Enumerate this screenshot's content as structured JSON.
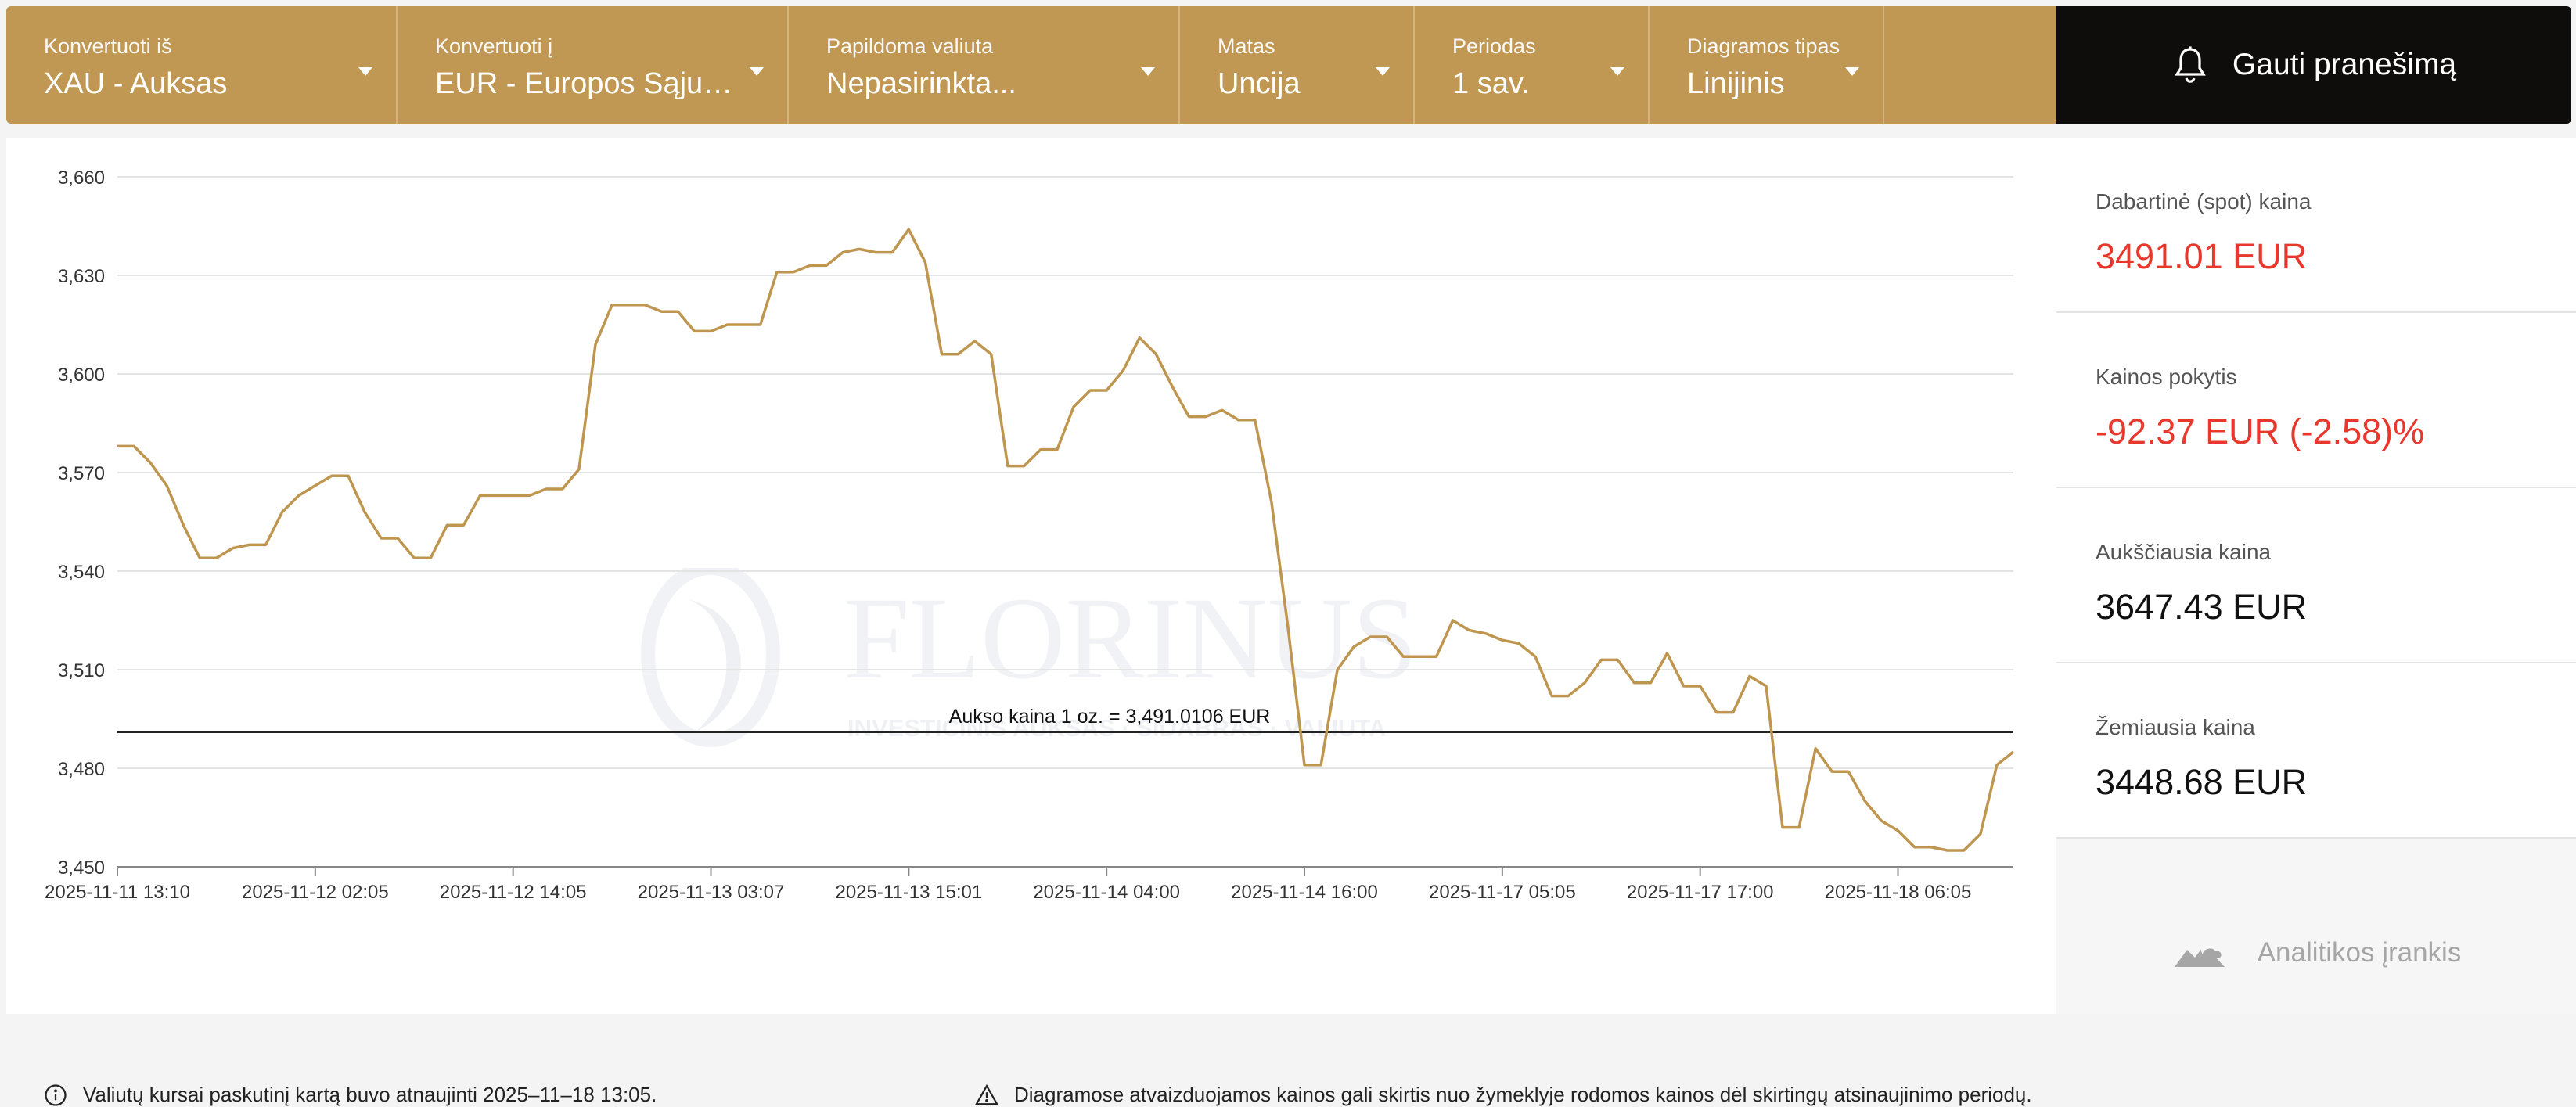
{
  "toolbar": {
    "from": {
      "label": "Konvertuoti iš",
      "value": "XAU - Auksas"
    },
    "to": {
      "label": "Konvertuoti į",
      "value": "EUR - Europos Sąjungo..."
    },
    "extra": {
      "label": "Papildoma valiuta",
      "value": "Nepasirinkta..."
    },
    "unit": {
      "label": "Matas",
      "value": "Uncija"
    },
    "period": {
      "label": "Periodas",
      "value": "1 sav."
    },
    "chart_type": {
      "label": "Diagramos tipas",
      "value": "Linijinis"
    },
    "alert_button": "Gauti pranešimą",
    "accent": "#c09853"
  },
  "watermark": {
    "brand": "FLORINUS",
    "tagline": "INVESTICINIS AUKSAS · SIDABRAS · VALIUTA"
  },
  "stats": {
    "spot": {
      "label": "Dabartinė (spot) kaina",
      "value": "3491.01 EUR"
    },
    "change": {
      "label": "Kainos pokytis",
      "value": "-92.37 EUR (-2.58)%"
    },
    "high": {
      "label": "Aukščiausia kaina",
      "value": "3647.43 EUR"
    },
    "low": {
      "label": "Žemiausia kaina",
      "value": "3448.68 EUR"
    }
  },
  "analytics_label": "Analitikos įrankis",
  "footer": {
    "updated": "Valiutų kursai paskutinį kartą buvo atnaujinti 2025–11–18 13:05.",
    "disclaimer": "Diagramose atvaizduojamos kainos gali skirtis nuo žymeklyje rodomos kainos dėl skirtingų atsinaujinimo periodų."
  },
  "chart_data": {
    "type": "line",
    "line_color": "#bf9650",
    "grid": true,
    "ylim": [
      3450,
      3660
    ],
    "yticks": [
      "3,450",
      "3,480",
      "3,510",
      "3,540",
      "3,570",
      "3,600",
      "3,630",
      "3,660"
    ],
    "ytick_values": [
      3450,
      3480,
      3510,
      3540,
      3570,
      3600,
      3630,
      3660
    ],
    "xticks": [
      "2025-11-11 13:10",
      "2025-11-12 02:05",
      "2025-11-12 14:05",
      "2025-11-13 03:07",
      "2025-11-13 15:01",
      "2025-11-14 04:00",
      "2025-11-14 16:00",
      "2025-11-17 05:05",
      "2025-11-17 17:00",
      "2025-11-18 06:05"
    ],
    "xtick_index": [
      0,
      12,
      24,
      36,
      48,
      60,
      72,
      84,
      96,
      108
    ],
    "reference_line": {
      "value": 3491.0106,
      "label": "Aukso kaina 1 oz. = 3,491.0106 EUR"
    },
    "values": [
      3578,
      3578,
      3573,
      3566,
      3554,
      3544,
      3544,
      3547,
      3548,
      3548,
      3558,
      3563,
      3566,
      3569,
      3569,
      3558,
      3550,
      3550,
      3544,
      3544,
      3554,
      3554,
      3563,
      3563,
      3563,
      3563,
      3565,
      3565,
      3571,
      3609,
      3621,
      3621,
      3621,
      3619,
      3619,
      3613,
      3613,
      3615,
      3615,
      3615,
      3631,
      3631,
      3633,
      3633,
      3637,
      3638,
      3637,
      3637,
      3644,
      3634,
      3606,
      3606,
      3610,
      3606,
      3572,
      3572,
      3577,
      3577,
      3590,
      3595,
      3595,
      3601,
      3611,
      3606,
      3596,
      3587,
      3587,
      3589,
      3586,
      3586,
      3561,
      3523,
      3481,
      3481,
      3510,
      3517,
      3520,
      3520,
      3514,
      3514,
      3514,
      3525,
      3522,
      3521,
      3519,
      3518,
      3514,
      3502,
      3502,
      3506,
      3513,
      3513,
      3506,
      3506,
      3515,
      3505,
      3505,
      3497,
      3497,
      3508,
      3505,
      3462,
      3462,
      3486,
      3479,
      3479,
      3470,
      3464,
      3461,
      3456,
      3456,
      3455,
      3455,
      3460,
      3481,
      3485
    ]
  }
}
